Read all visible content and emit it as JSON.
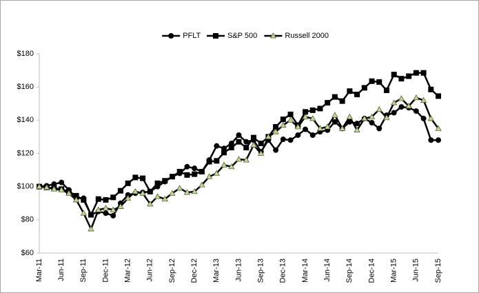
{
  "chart_data": {
    "type": "line",
    "categories": [
      "Mar-11",
      null,
      null,
      "Jun-11",
      null,
      null,
      "Sep-11",
      null,
      null,
      "Dec-11",
      null,
      null,
      "Mar-12",
      null,
      null,
      "Jun-12",
      null,
      null,
      "Sep-12",
      null,
      null,
      "Dec-12",
      null,
      null,
      "Mar-13",
      null,
      null,
      "Jun-13",
      null,
      null,
      "Sep-13",
      null,
      null,
      "Dec-13",
      null,
      null,
      "Mar-14",
      null,
      null,
      "Jun-14",
      null,
      null,
      "Sep-14",
      null,
      null,
      "Dec-14",
      null,
      null,
      "Mar-15",
      null,
      null,
      "Jun-15",
      null,
      null,
      "Sep-15"
    ],
    "series": [
      {
        "name": "PFLT",
        "color": "#000000",
        "marker": "circle",
        "marker_color": "#000000",
        "values": [
          100,
          100.5,
          101.5,
          102.5,
          98,
          93,
          93,
          83,
          85,
          84,
          82.5,
          90,
          95,
          96,
          96.5,
          97,
          100,
          103,
          106,
          108,
          112,
          111,
          109,
          116,
          124.5,
          123,
          126,
          131,
          127,
          128,
          121,
          128,
          122,
          128.5,
          128,
          131,
          134.5,
          131,
          133,
          134,
          139,
          135,
          139,
          138,
          141,
          138.5,
          135,
          143,
          144.5,
          148,
          147.5,
          145.5,
          141,
          128,
          128
        ]
      },
      {
        "name": "S&P 500",
        "color": "#000000",
        "marker": "square",
        "marker_color": "#000000",
        "values": [
          100,
          99.5,
          99,
          98.5,
          97,
          94.5,
          92,
          83,
          92.5,
          92,
          93.5,
          97.5,
          102,
          105.5,
          105,
          97,
          102,
          103.5,
          106,
          109,
          107,
          107.5,
          109,
          115,
          115.5,
          120.5,
          123.5,
          127,
          123.5,
          129.5,
          126,
          130,
          136,
          140.5,
          143.5,
          137,
          145,
          146,
          147,
          150.5,
          154,
          151.5,
          157.5,
          155.5,
          159.5,
          163.5,
          163,
          158,
          167.5,
          165,
          166.5,
          168.5,
          168.5,
          158.5,
          154.5
        ]
      },
      {
        "name": "Russell 2000",
        "color": "#000000",
        "marker": "triangle",
        "marker_color": "#c4d79b",
        "values": [
          100,
          99.5,
          98.5,
          98,
          96,
          92,
          84,
          74.5,
          86,
          87,
          86,
          88,
          93,
          97,
          96,
          89.5,
          94,
          92.5,
          96,
          99,
          96.5,
          97,
          101,
          106,
          108,
          113,
          112,
          116.5,
          116,
          125,
          120,
          130,
          133,
          137,
          140,
          136,
          142,
          141,
          135,
          136,
          143,
          135,
          142,
          134,
          141,
          142,
          146.5,
          141.5,
          150.5,
          153,
          148.5,
          153.5,
          152,
          141,
          135
        ]
      }
    ],
    "ylim": [
      60,
      180
    ],
    "yticks": [
      {
        "value": 60,
        "label": "$60"
      },
      {
        "value": 80,
        "label": "$80"
      },
      {
        "value": 100,
        "label": "$100"
      },
      {
        "value": 120,
        "label": "$120"
      },
      {
        "value": 140,
        "label": "$140"
      },
      {
        "value": 160,
        "label": "$160"
      },
      {
        "value": 180,
        "label": "$180"
      }
    ],
    "grid": false,
    "legend": "top"
  }
}
